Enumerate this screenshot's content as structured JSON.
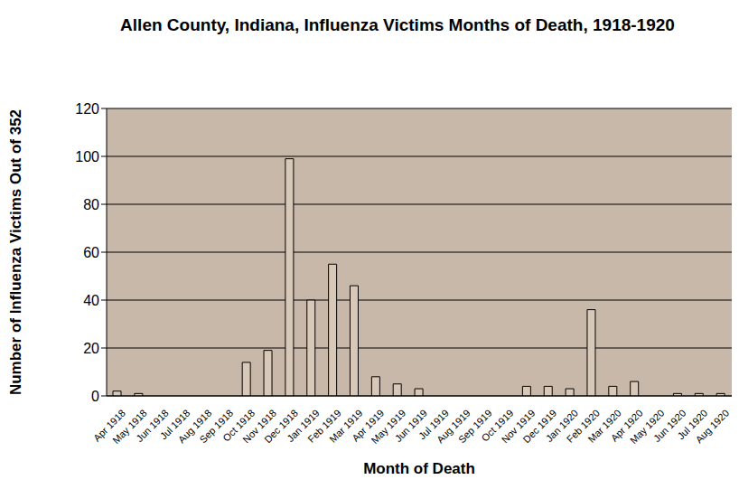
{
  "chart_data": {
    "type": "bar",
    "title": "Allen County, Indiana, Influenza Victims Months of Death, 1918-1920",
    "x_label": "Month of Death",
    "y_label": "Number of Influenza Victims Out of 352",
    "categories": [
      "Apr 1918",
      "May 1918",
      "Jun 1918",
      "Jul 1918",
      "Aug 1918",
      "Sep 1918",
      "Oct 1918",
      "Nov 1918",
      "Dec 1918",
      "Jan 1919",
      "Feb 1919",
      "Mar 1919",
      "Apr 1919",
      "May 1919",
      "Jun 1919",
      "Jul 1919",
      "Aug 1919",
      "Sep 1919",
      "Oct 1919",
      "Nov 1919",
      "Dec 1919",
      "Jan 1920",
      "Feb 1920",
      "Mar 1920",
      "Apr 1920",
      "May 1920",
      "Jun 1920",
      "Jul 1920",
      "Aug 1920"
    ],
    "values": [
      2,
      1,
      0,
      0,
      0,
      0,
      14,
      19,
      99,
      40,
      55,
      46,
      8,
      5,
      3,
      0,
      0,
      0,
      0,
      4,
      4,
      3,
      36,
      4,
      6,
      0,
      1,
      1,
      1
    ],
    "color": "#d8c8b8",
    "ylim": [
      0,
      120
    ],
    "yticks": [
      0,
      20,
      40,
      60,
      80,
      100,
      120
    ],
    "grid": true
  }
}
